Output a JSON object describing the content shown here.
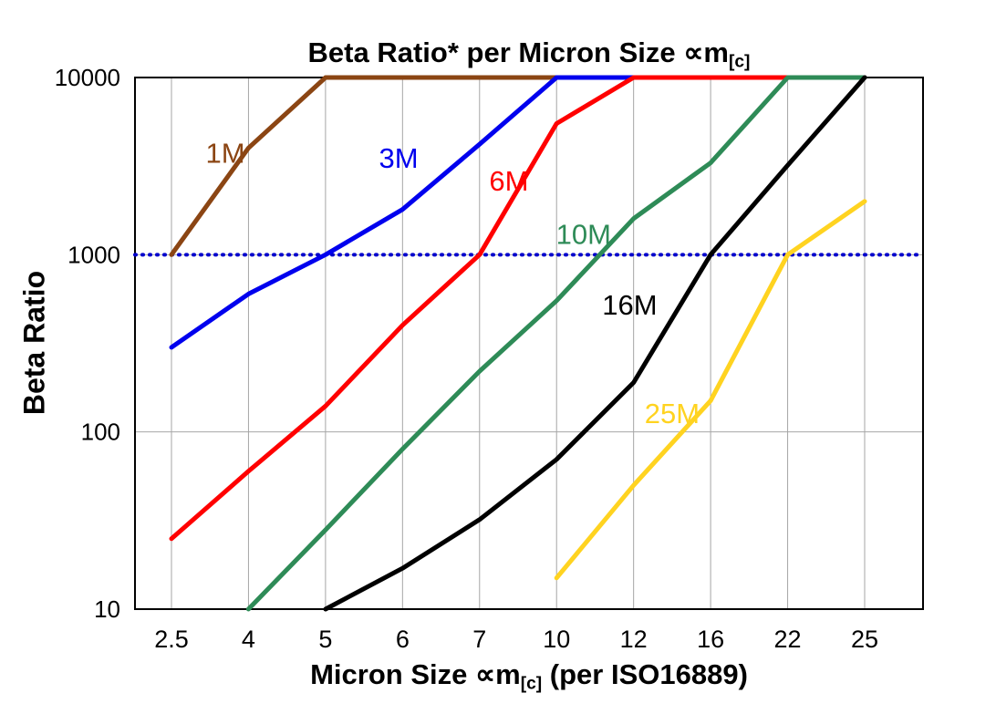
{
  "ui": {
    "title_parts": {
      "prefix": "Beta Ratio* per Micron Size ",
      "symbol": "∝m",
      "sub": "[c]"
    },
    "y_axis_title": "Beta Ratio",
    "x_axis_title_parts": {
      "prefix": "Micron Size ",
      "symbol": "∝m",
      "sub": "[c]",
      "suffix": " (per ISO16889)"
    }
  },
  "chart_data": {
    "type": "line",
    "title": "Beta Ratio* per Micron Size ∝m[c]",
    "xlabel": "Micron Size ∝m[c] (per ISO16889)",
    "ylabel": "Beta Ratio",
    "x_scale": "category",
    "y_scale": "log",
    "categories": [
      "2.5",
      "4",
      "5",
      "6",
      "7",
      "10",
      "12",
      "16",
      "22",
      "25"
    ],
    "y_ticks": [
      10,
      100,
      1000,
      10000
    ],
    "ylim": [
      10,
      10000
    ],
    "grid": true,
    "grid_color": "#a6a6a6",
    "legend_position": "inline-labels",
    "reference_line": {
      "y": 1000,
      "color": "#0000cc",
      "style": "dotted"
    },
    "series": [
      {
        "name": "1M",
        "color": "#8b4513",
        "values": [
          1000,
          4000,
          10000,
          10000,
          10000,
          10000,
          10000,
          10000,
          10000,
          10000
        ],
        "label_pos": {
          "xi": 0.7,
          "y": 3300
        }
      },
      {
        "name": "3M",
        "color": "#0000ee",
        "values": [
          300,
          600,
          1000,
          1800,
          4200,
          10000,
          10000,
          10000,
          10000,
          10000
        ],
        "label_pos": {
          "xi": 2.95,
          "y": 3100
        }
      },
      {
        "name": "6M",
        "color": "#ff0000",
        "values": [
          25,
          60,
          140,
          400,
          1000,
          5500,
          10000,
          10000,
          10000,
          10000
        ],
        "label_pos": {
          "xi": 4.38,
          "y": 2300
        }
      },
      {
        "name": "10M",
        "color": "#2e8b57",
        "values": [
          null,
          10,
          28,
          80,
          220,
          550,
          1600,
          3300,
          10000,
          10000
        ],
        "label_pos": {
          "xi": 5.35,
          "y": 1150
        }
      },
      {
        "name": "16M",
        "color": "#000000",
        "values": [
          null,
          null,
          10,
          17,
          32,
          70,
          190,
          1000,
          3200,
          10000
        ],
        "label_pos": {
          "xi": 5.95,
          "y": 460
        }
      },
      {
        "name": "25M",
        "color": "#ffd320",
        "values": [
          null,
          null,
          null,
          null,
          null,
          15,
          50,
          150,
          1000,
          2000
        ],
        "label_pos": {
          "xi": 6.5,
          "y": 112
        }
      }
    ]
  }
}
